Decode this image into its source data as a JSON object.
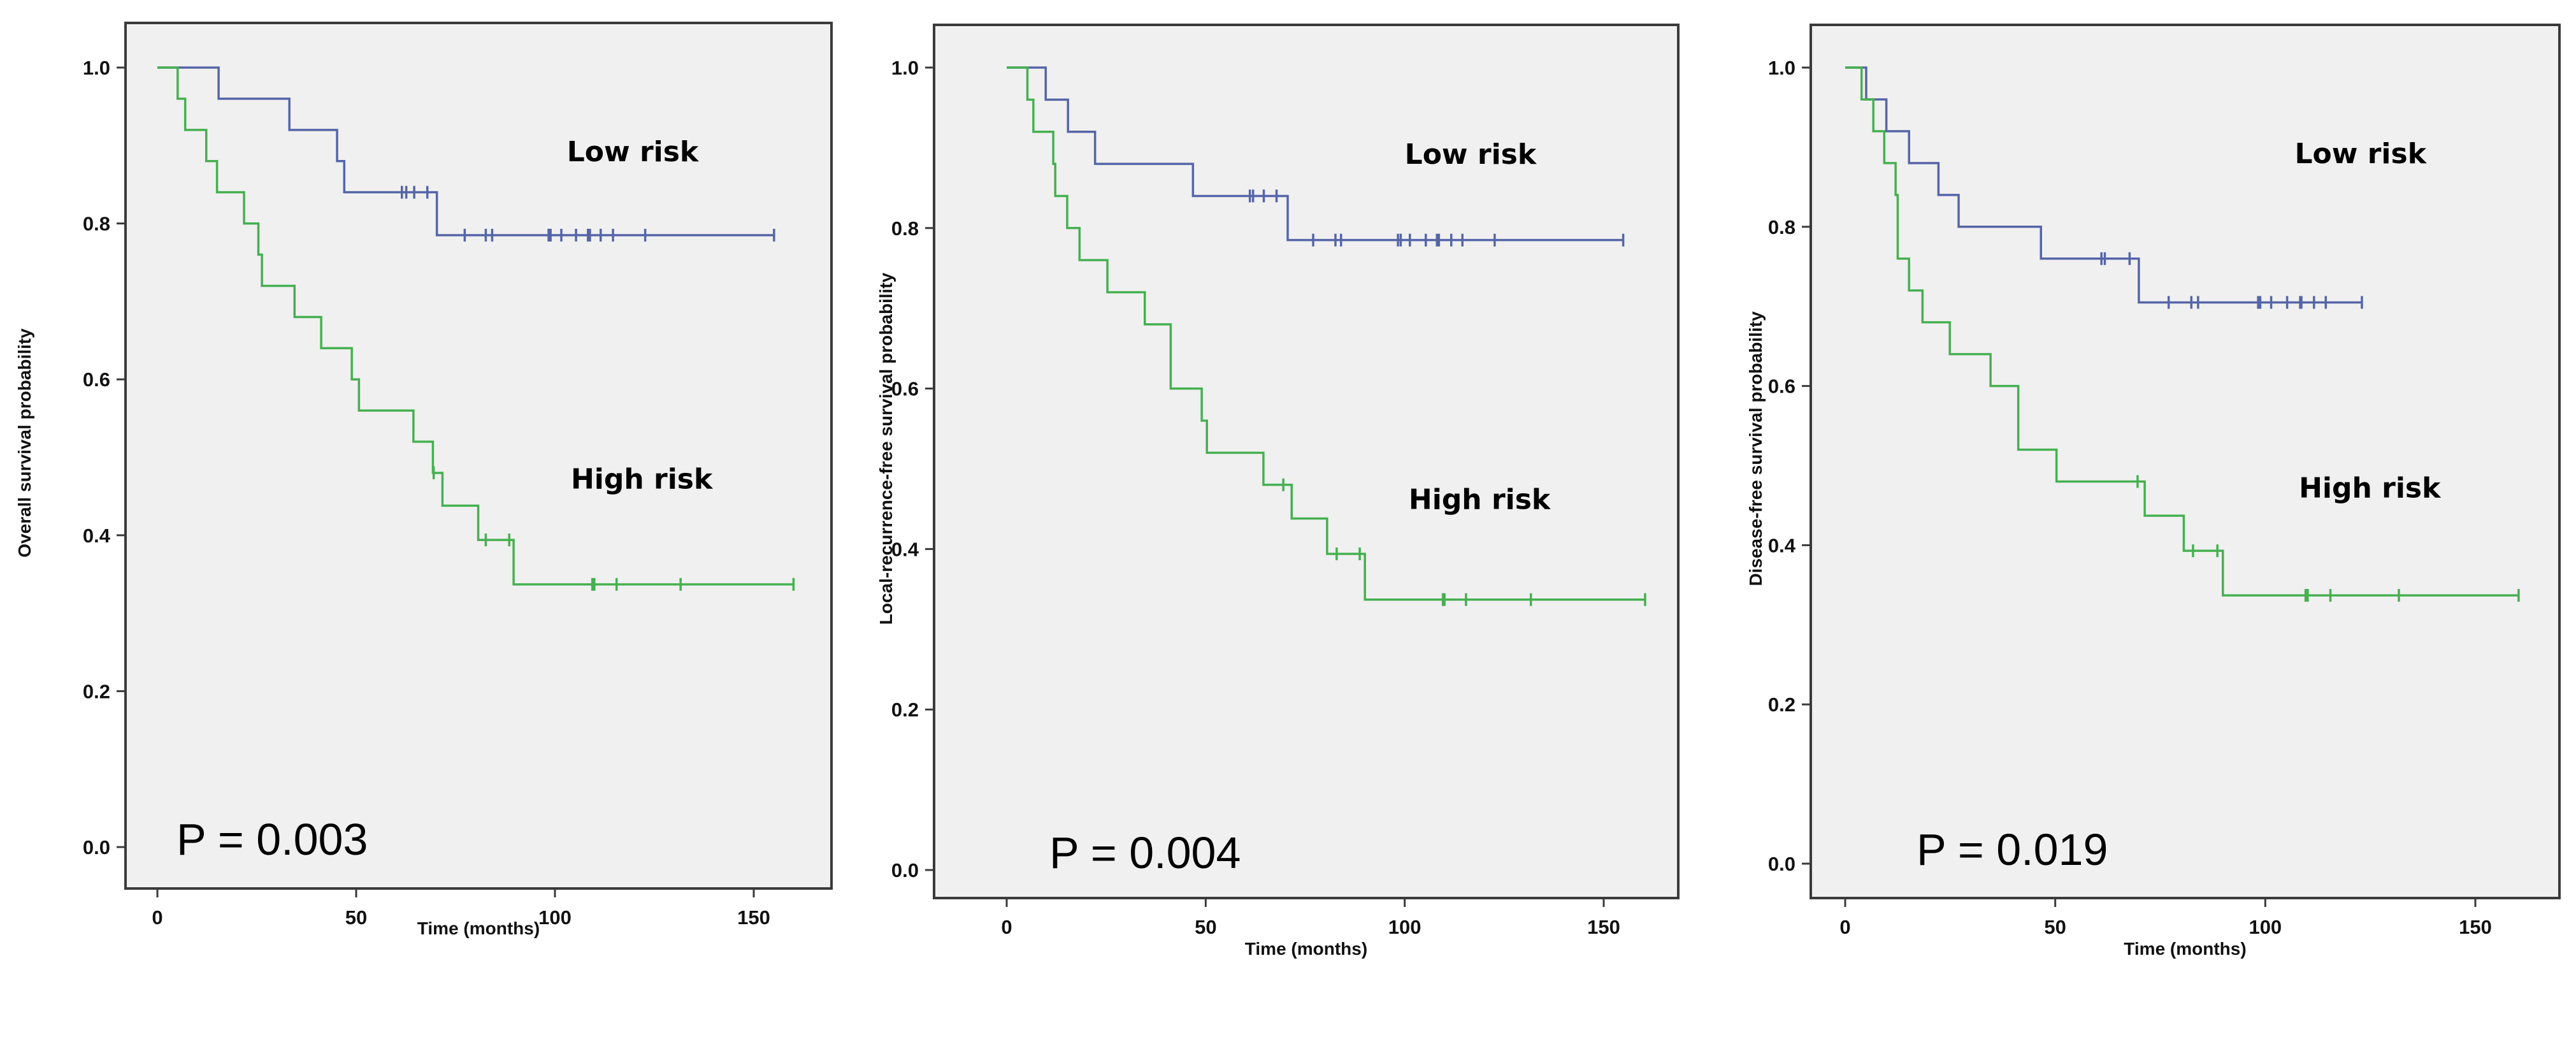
{
  "chart_data": [
    {
      "type": "line",
      "subtype": "kaplan-meier",
      "xlabel": "Time (months)",
      "ylabel": "Overall survival probability",
      "xlim": [
        0,
        160
      ],
      "ylim": [
        0,
        1.0
      ],
      "xticks": [
        "0",
        "50",
        "100",
        "150"
      ],
      "yticks": [
        "0.0",
        "0.2",
        "0.4",
        "0.6",
        "0.8",
        "1.0"
      ],
      "p_value_label": "P = 0.003",
      "series": [
        {
          "name": "Low risk",
          "color": "#5565a8",
          "label_at": [
            103,
            0.88
          ],
          "steps": [
            [
              15.4,
              0.96
            ],
            [
              33.2,
              0.92
            ],
            [
              45.2,
              0.88
            ],
            [
              47,
              0.84
            ],
            [
              70.3,
              0.785
            ]
          ],
          "censored": [
            61.5,
            62.6,
            64.6,
            67.9,
            77.3,
            82.6,
            84.2,
            98.4,
            98.9,
            101.6,
            105.3,
            108.3,
            108.8,
            111.5,
            114.6,
            122.7,
            155.1
          ]
        },
        {
          "name": "High risk",
          "color": "#45b050",
          "label_at": [
            104,
            0.46
          ],
          "steps": [
            [
              5.1,
              0.96
            ],
            [
              7,
              0.92
            ],
            [
              12.3,
              0.88
            ],
            [
              15,
              0.84
            ],
            [
              21.8,
              0.8
            ],
            [
              25.4,
              0.76
            ],
            [
              26.3,
              0.72
            ],
            [
              34.5,
              0.68
            ],
            [
              41.2,
              0.64
            ],
            [
              48.9,
              0.6
            ],
            [
              50.7,
              0.56
            ],
            [
              64.4,
              0.52
            ],
            [
              69.3,
              0.48
            ],
            [
              71.7,
              0.438
            ],
            [
              80.7,
              0.394
            ],
            [
              89.6,
              0.337
            ]
          ],
          "censored": [
            69.5,
            82.6,
            88.5,
            109.4,
            109.9,
            115.5,
            131.6,
            160
          ]
        }
      ]
    },
    {
      "type": "line",
      "subtype": "kaplan-meier",
      "xlabel": "Time (months)",
      "ylabel": "Local-recurrence-free survival probability",
      "xlim": [
        0,
        160
      ],
      "ylim": [
        0,
        1.0
      ],
      "xticks": [
        "0",
        "50",
        "100",
        "150"
      ],
      "yticks": [
        "0.0",
        "0.2",
        "0.4",
        "0.6",
        "0.8",
        "1.0"
      ],
      "p_value_label": "P = 0.004",
      "series": [
        {
          "name": "Low risk",
          "color": "#5565a8",
          "label_at": [
            100,
            0.88
          ],
          "steps": [
            [
              9.8,
              0.96
            ],
            [
              15.4,
              0.92
            ],
            [
              22.2,
              0.88
            ],
            [
              46.8,
              0.84
            ],
            [
              70.6,
              0.785
            ]
          ],
          "censored": [
            61.1,
            61.9,
            64.6,
            67.8,
            77,
            82.6,
            84,
            98.3,
            99,
            101.3,
            105.3,
            108.1,
            108.6,
            111.7,
            114.5,
            122.6,
            154.9
          ]
        },
        {
          "name": "High risk",
          "color": "#45b050",
          "label_at": [
            101,
            0.45
          ],
          "steps": [
            [
              5.2,
              0.96
            ],
            [
              6.7,
              0.92
            ],
            [
              11.7,
              0.88
            ],
            [
              12.2,
              0.84
            ],
            [
              15.2,
              0.8
            ],
            [
              18.3,
              0.76
            ],
            [
              25.3,
              0.72
            ],
            [
              34.7,
              0.68
            ],
            [
              41.2,
              0.6
            ],
            [
              49,
              0.56
            ],
            [
              50.3,
              0.52
            ],
            [
              64.5,
              0.48
            ],
            [
              71.6,
              0.438
            ],
            [
              80.5,
              0.394
            ],
            [
              90,
              0.337
            ]
          ],
          "censored": [
            69.5,
            82.9,
            88.7,
            109.6,
            110,
            115.4,
            131.7,
            160.4
          ]
        }
      ]
    },
    {
      "type": "line",
      "subtype": "kaplan-meier",
      "xlabel": "Time (months)",
      "ylabel": "Disease-free survival probability",
      "xlim": [
        0,
        160
      ],
      "ylim": [
        0,
        1.0
      ],
      "xticks": [
        "0",
        "50",
        "100",
        "150"
      ],
      "yticks": [
        "0.0",
        "0.2",
        "0.4",
        "0.6",
        "0.8",
        "1.0"
      ],
      "p_value_label": "P = 0.019",
      "series": [
        {
          "name": "Low risk",
          "color": "#5565a8",
          "label_at": [
            107,
            0.88
          ],
          "steps": [
            [
              5,
              0.96
            ],
            [
              9.8,
              0.92
            ],
            [
              15.2,
              0.88
            ],
            [
              22.2,
              0.84
            ],
            [
              27,
              0.8
            ],
            [
              46.6,
              0.76
            ],
            [
              69.9,
              0.705
            ]
          ],
          "censored": [
            61,
            61.8,
            67.7,
            77,
            82.4,
            84,
            98.3,
            98.8,
            101.4,
            105.2,
            108.3,
            108.6,
            111.6,
            114.4,
            123
          ]
        },
        {
          "name": "High risk",
          "color": "#45b050",
          "label_at": [
            108,
            0.46
          ],
          "steps": [
            [
              3.9,
              0.96
            ],
            [
              6.7,
              0.92
            ],
            [
              9.3,
              0.88
            ],
            [
              12,
              0.84
            ],
            [
              12.5,
              0.76
            ],
            [
              15.2,
              0.72
            ],
            [
              18.4,
              0.68
            ],
            [
              24.9,
              0.64
            ],
            [
              34.6,
              0.6
            ],
            [
              41.2,
              0.52
            ],
            [
              50.3,
              0.48
            ],
            [
              71.3,
              0.437
            ],
            [
              80.6,
              0.393
            ],
            [
              89.9,
              0.337
            ]
          ],
          "censored": [
            69.6,
            82.8,
            88.6,
            109.6,
            110.1,
            115.5,
            131.8,
            160.3
          ]
        }
      ]
    }
  ]
}
